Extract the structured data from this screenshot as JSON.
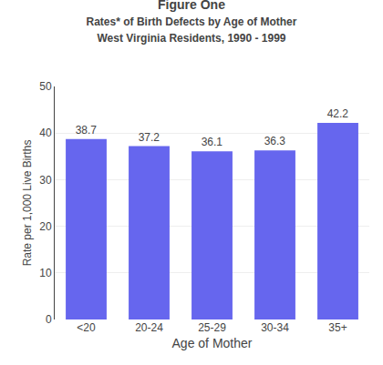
{
  "chart_data": {
    "type": "bar",
    "title": "Figure One",
    "subtitle": [
      "Rates* of Birth Defects by Age of Mother",
      "West Virginia Residents, 1990 - 1999"
    ],
    "xlabel": "Age of Mother",
    "ylabel": "Rate per 1,000 Live Births",
    "categories": [
      "<20",
      "20-24",
      "25-29",
      "30-34",
      "35+"
    ],
    "values": [
      38.7,
      37.2,
      36.1,
      36.3,
      42.2
    ],
    "color": "#6666EE",
    "ylim": [
      0,
      50
    ],
    "yticks": [
      0,
      10,
      20,
      30,
      40,
      50
    ],
    "grid": true,
    "data_labels": true
  }
}
